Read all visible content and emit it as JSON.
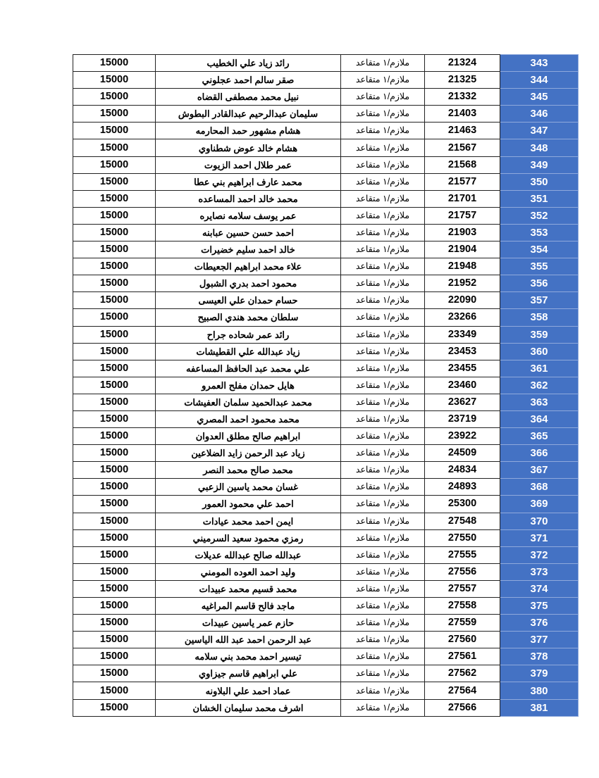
{
  "colors": {
    "number_column_bg": "#4472C4",
    "number_column_text": "#FFFFFF"
  },
  "rows": [
    {
      "no": "343",
      "id": "21324",
      "rank": "ملازم/١ متقاعد",
      "name": "رائد زياد علي الخطيب",
      "amount": "15000"
    },
    {
      "no": "344",
      "id": "21325",
      "rank": "ملازم/١ متقاعد",
      "name": "صقر سالم احمد عجلوني",
      "amount": "15000"
    },
    {
      "no": "345",
      "id": "21332",
      "rank": "ملازم/١ متقاعد",
      "name": "نبيل محمد مصطفى القضاه",
      "amount": "15000"
    },
    {
      "no": "346",
      "id": "21403",
      "rank": "ملازم/١ متقاعد",
      "name": "سليمان عبدالرحيم عبدالقادر البطوش",
      "amount": "15000"
    },
    {
      "no": "347",
      "id": "21463",
      "rank": "ملازم/١ متقاعد",
      "name": "هشام مشهور حمد المحارمه",
      "amount": "15000"
    },
    {
      "no": "348",
      "id": "21567",
      "rank": "ملازم/١ متقاعد",
      "name": "هشام خالد عوض شطناوي",
      "amount": "15000"
    },
    {
      "no": "349",
      "id": "21568",
      "rank": "ملازم/١ متقاعد",
      "name": "عمر طلال احمد الزيوت",
      "amount": "15000"
    },
    {
      "no": "350",
      "id": "21577",
      "rank": "ملازم/١ متقاعد",
      "name": "محمد عارف ابراهيم بني عطا",
      "amount": "15000"
    },
    {
      "no": "351",
      "id": "21701",
      "rank": "ملازم/١ متقاعد",
      "name": "محمد خالد احمد المساعده",
      "amount": "15000"
    },
    {
      "no": "352",
      "id": "21757",
      "rank": "ملازم/١ متقاعد",
      "name": "عمر يوسف سلامه نصايره",
      "amount": "15000"
    },
    {
      "no": "353",
      "id": "21903",
      "rank": "ملازم/١ متقاعد",
      "name": "احمد حسن حسين عبابنه",
      "amount": "15000"
    },
    {
      "no": "354",
      "id": "21904",
      "rank": "ملازم/١ متقاعد",
      "name": "خالد احمد سليم خضيرات",
      "amount": "15000"
    },
    {
      "no": "355",
      "id": "21948",
      "rank": "ملازم/١ متقاعد",
      "name": "علاء محمد ابراهيم الجعيطات",
      "amount": "15000"
    },
    {
      "no": "356",
      "id": "21952",
      "rank": "ملازم/١ متقاعد",
      "name": "محمود احمد بدري الشبول",
      "amount": "15000"
    },
    {
      "no": "357",
      "id": "22090",
      "rank": "ملازم/١ متقاعد",
      "name": "حسام حمدان علي العيسى",
      "amount": "15000"
    },
    {
      "no": "358",
      "id": "23266",
      "rank": "ملازم/١ متقاعد",
      "name": "سلطان محمد هندي الصبيح",
      "amount": "15000"
    },
    {
      "no": "359",
      "id": "23349",
      "rank": "ملازم/١ متقاعد",
      "name": "رائد عمر شحاده جراح",
      "amount": "15000"
    },
    {
      "no": "360",
      "id": "23453",
      "rank": "ملازم/١ متقاعد",
      "name": "زياد عبدالله علي القطيشات",
      "amount": "15000"
    },
    {
      "no": "361",
      "id": "23455",
      "rank": "ملازم/١ متقاعد",
      "name": "علي محمد عبد الحافظ المساعفه",
      "amount": "15000"
    },
    {
      "no": "362",
      "id": "23460",
      "rank": "ملازم/١ متقاعد",
      "name": "هايل حمدان مفلح العمرو",
      "amount": "15000"
    },
    {
      "no": "363",
      "id": "23627",
      "rank": "ملازم/١ متقاعد",
      "name": "محمد عبدالحميد سلمان العفيشات",
      "amount": "15000"
    },
    {
      "no": "364",
      "id": "23719",
      "rank": "ملازم/١ متقاعد",
      "name": "محمد محمود احمد المصري",
      "amount": "15000"
    },
    {
      "no": "365",
      "id": "23922",
      "rank": "ملازم/١ متقاعد",
      "name": "ابراهيم صالح مطلق العدوان",
      "amount": "15000"
    },
    {
      "no": "366",
      "id": "24509",
      "rank": "ملازم/١ متقاعد",
      "name": "زياد عبد الرحمن زايد الضلاعين",
      "amount": "15000"
    },
    {
      "no": "367",
      "id": "24834",
      "rank": "ملازم/١ متقاعد",
      "name": "محمد صالح محمد النصر",
      "amount": "15000"
    },
    {
      "no": "368",
      "id": "24893",
      "rank": "ملازم/١ متقاعد",
      "name": "غسان محمد ياسين الزعبي",
      "amount": "15000"
    },
    {
      "no": "369",
      "id": "25300",
      "rank": "ملازم/١ متقاعد",
      "name": "احمد علي محمود العمور",
      "amount": "15000"
    },
    {
      "no": "370",
      "id": "27548",
      "rank": "ملازم/١ متقاعد",
      "name": "ايمن احمد محمد عيادات",
      "amount": "15000"
    },
    {
      "no": "371",
      "id": "27550",
      "rank": "ملازم/١ متقاعد",
      "name": "رمزي محمود سعيد السرميني",
      "amount": "15000"
    },
    {
      "no": "372",
      "id": "27555",
      "rank": "ملازم/١ متقاعد",
      "name": "عبدالله صالح عبدالله عديلات",
      "amount": "15000"
    },
    {
      "no": "373",
      "id": "27556",
      "rank": "ملازم/١ متقاعد",
      "name": "وليد احمد العوده المومني",
      "amount": "15000"
    },
    {
      "no": "374",
      "id": "27557",
      "rank": "ملازم/١ متقاعد",
      "name": "محمد قسيم محمد عبيدات",
      "amount": "15000"
    },
    {
      "no": "375",
      "id": "27558",
      "rank": "ملازم/١ متقاعد",
      "name": "ماجد فالح قاسم المراغيه",
      "amount": "15000"
    },
    {
      "no": "376",
      "id": "27559",
      "rank": "ملازم/١ متقاعد",
      "name": "حازم عمر ياسين عبيدات",
      "amount": "15000"
    },
    {
      "no": "377",
      "id": "27560",
      "rank": "ملازم/١ متقاعد",
      "name": "عبد الرحمن احمد عبد الله الياسين",
      "amount": "15000"
    },
    {
      "no": "378",
      "id": "27561",
      "rank": "ملازم/١ متقاعد",
      "name": "تيسير احمد محمد بني سلامه",
      "amount": "15000"
    },
    {
      "no": "379",
      "id": "27562",
      "rank": "ملازم/١ متقاعد",
      "name": "علي ابراهيم قاسم جيزاوي",
      "amount": "15000"
    },
    {
      "no": "380",
      "id": "27564",
      "rank": "ملازم/١ متقاعد",
      "name": "عماد احمد علي البلاونه",
      "amount": "15000"
    },
    {
      "no": "381",
      "id": "27566",
      "rank": "ملازم/١ متقاعد",
      "name": "اشرف محمد سليمان الخشان",
      "amount": "15000"
    }
  ]
}
